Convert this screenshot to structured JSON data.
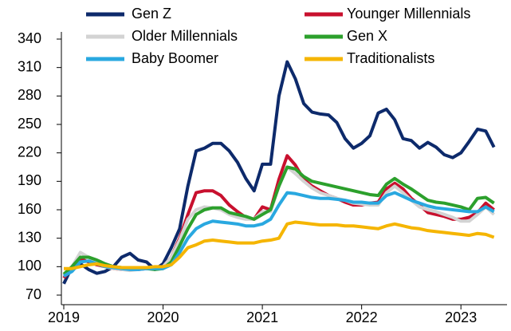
{
  "chart_data": {
    "type": "line",
    "x": [
      2019,
      2019.083,
      2019.167,
      2019.25,
      2019.333,
      2019.417,
      2019.5,
      2019.583,
      2019.667,
      2019.75,
      2019.833,
      2019.917,
      2020,
      2020.083,
      2020.167,
      2020.25,
      2020.333,
      2020.417,
      2020.5,
      2020.583,
      2020.667,
      2020.75,
      2020.833,
      2020.917,
      2021,
      2021.083,
      2021.167,
      2021.25,
      2021.333,
      2021.417,
      2021.5,
      2021.583,
      2021.667,
      2021.75,
      2021.833,
      2021.917,
      2022,
      2022.083,
      2022.167,
      2022.25,
      2022.333,
      2022.417,
      2022.5,
      2022.583,
      2022.667,
      2022.75,
      2022.833,
      2022.917,
      2023,
      2023.083,
      2023.167,
      2023.25,
      2023.333
    ],
    "series": [
      {
        "name": "Gen Z",
        "color": "#0d2a6b",
        "values": [
          82,
          100,
          103,
          97,
          93,
          95,
          100,
          110,
          114,
          107,
          105,
          97,
          103,
          120,
          140,
          185,
          222,
          225,
          230,
          230,
          222,
          210,
          193,
          180,
          208,
          208,
          280,
          316,
          298,
          272,
          263,
          261,
          260,
          252,
          235,
          225,
          230,
          238,
          262,
          266,
          255,
          235,
          233,
          225,
          231,
          226,
          218,
          215,
          220,
          232,
          245,
          243,
          226
        ]
      },
      {
        "name": "Younger Millennials",
        "color": "#c8102e",
        "values": [
          88,
          98,
          108,
          105,
          102,
          100,
          98,
          97,
          97,
          97,
          98,
          98,
          100,
          110,
          130,
          155,
          178,
          180,
          180,
          175,
          165,
          158,
          152,
          150,
          163,
          160,
          192,
          217,
          207,
          192,
          185,
          180,
          175,
          172,
          168,
          165,
          165,
          167,
          168,
          182,
          188,
          182,
          172,
          165,
          157,
          155,
          153,
          150,
          150,
          152,
          157,
          167,
          160
        ]
      },
      {
        "name": "Older Millennials",
        "color": "#d3d3d3",
        "values": [
          90,
          100,
          115,
          110,
          105,
          100,
          98,
          97,
          96,
          97,
          98,
          98,
          100,
          110,
          128,
          150,
          160,
          163,
          162,
          160,
          155,
          152,
          150,
          150,
          158,
          158,
          185,
          205,
          198,
          190,
          183,
          178,
          175,
          172,
          170,
          167,
          166,
          165,
          165,
          178,
          185,
          178,
          170,
          163,
          160,
          158,
          155,
          152,
          148,
          148,
          155,
          163,
          155
        ]
      },
      {
        "name": "Gen X",
        "color": "#2ca02c",
        "values": [
          92,
          100,
          110,
          110,
          107,
          103,
          100,
          99,
          98,
          99,
          98,
          97,
          98,
          105,
          122,
          140,
          155,
          160,
          162,
          162,
          157,
          155,
          153,
          150,
          155,
          160,
          185,
          205,
          203,
          195,
          190,
          188,
          186,
          184,
          182,
          180,
          178,
          176,
          175,
          187,
          193,
          187,
          182,
          176,
          170,
          168,
          167,
          165,
          163,
          160,
          172,
          173,
          167
        ]
      },
      {
        "name": "Baby Boomer",
        "color": "#29a8e0",
        "values": [
          90,
          95,
          105,
          106,
          103,
          100,
          99,
          98,
          97,
          97,
          98,
          98,
          98,
          102,
          115,
          130,
          140,
          145,
          148,
          147,
          146,
          145,
          143,
          143,
          145,
          150,
          165,
          178,
          177,
          175,
          173,
          172,
          172,
          171,
          170,
          168,
          168,
          167,
          167,
          175,
          178,
          174,
          170,
          167,
          164,
          162,
          161,
          160,
          159,
          158,
          158,
          163,
          158
        ]
      },
      {
        "name": "Traditionalists",
        "color": "#f5b500",
        "values": [
          98,
          98,
          100,
          102,
          103,
          101,
          100,
          99,
          99,
          99,
          99,
          100,
          100,
          102,
          110,
          120,
          123,
          127,
          128,
          127,
          126,
          125,
          125,
          125,
          127,
          128,
          130,
          145,
          147,
          146,
          145,
          144,
          144,
          144,
          143,
          143,
          142,
          141,
          140,
          143,
          145,
          143,
          141,
          140,
          138,
          137,
          136,
          135,
          134,
          133,
          135,
          134,
          131
        ]
      }
    ],
    "xlim": [
      2019,
      2023.4
    ],
    "xticks": [
      2019,
      2020,
      2021,
      2022,
      2023
    ],
    "ylim": [
      70,
      340
    ],
    "yticks": [
      70,
      100,
      130,
      160,
      190,
      220,
      250,
      280,
      310,
      340
    ]
  }
}
